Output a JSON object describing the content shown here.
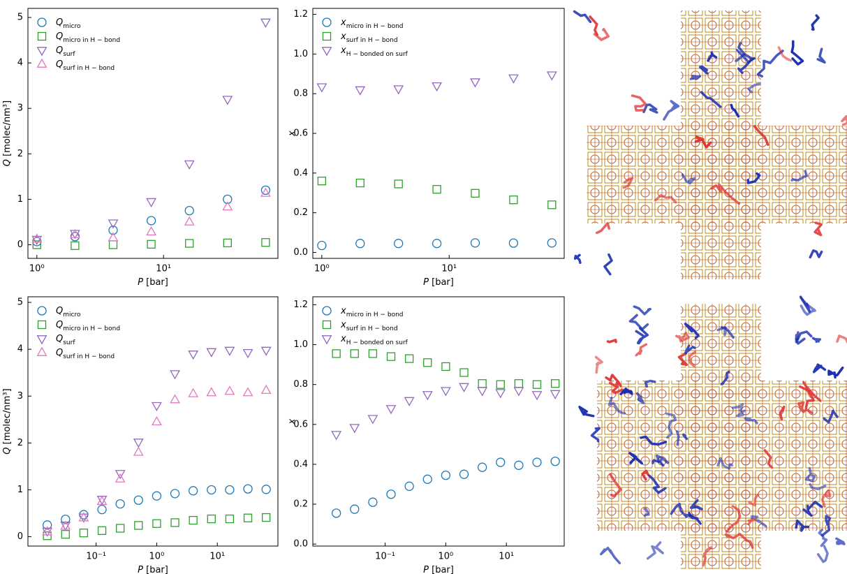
{
  "chart_data": [
    {
      "type": "scatter",
      "xscale": "log",
      "xlabel": "P [bar]",
      "ylabel": "Q [molec/nm³]",
      "xlim": [
        0.85,
        80
      ],
      "ylim": [
        -0.3,
        5.2
      ],
      "xticks": [
        {
          "value": 1,
          "label": "10⁰"
        },
        {
          "value": 10,
          "label": "10¹"
        }
      ],
      "yticks": [
        0,
        1,
        2,
        3,
        4,
        5
      ],
      "x": [
        1,
        2,
        4,
        8,
        16,
        32,
        64
      ],
      "series": [
        {
          "name": "Qmicro",
          "color": "#1f77b4",
          "marker": "circle",
          "values": [
            0.07,
            0.18,
            0.32,
            0.53,
            0.75,
            1.0,
            1.2
          ]
        },
        {
          "name": "Qmicro in H − bond",
          "color": "#2ca02c",
          "marker": "square",
          "values": [
            0.0,
            -0.02,
            0.0,
            0.01,
            0.03,
            0.04,
            0.05
          ]
        },
        {
          "name": "Qsurf",
          "color": "#9467bd",
          "marker": "triangle-down",
          "values": [
            0.12,
            0.25,
            0.48,
            0.95,
            1.78,
            3.2,
            4.9
          ]
        },
        {
          "name": "Qsurf in H − bond",
          "color": "#e377c2",
          "marker": "triangle-up",
          "values": [
            0.12,
            0.22,
            0.15,
            0.28,
            0.5,
            0.83,
            1.13
          ]
        }
      ]
    },
    {
      "type": "scatter",
      "xscale": "log",
      "xlabel": "P [bar]",
      "ylabel": "x",
      "xlim": [
        0.85,
        80
      ],
      "ylim": [
        -0.03,
        1.23
      ],
      "xticks": [
        {
          "value": 1,
          "label": "10⁰"
        },
        {
          "value": 10,
          "label": "10¹"
        }
      ],
      "yticks": [
        {
          "value": 0,
          "label": "0.0"
        },
        0.2,
        0.4,
        0.6,
        0.8,
        {
          "value": 1,
          "label": "1.0"
        },
        1.2
      ],
      "x": [
        1,
        2,
        4,
        8,
        16,
        32,
        64
      ],
      "series": [
        {
          "name": "xmicro in H − bond",
          "color": "#1f77b4",
          "marker": "circle",
          "values": [
            0.035,
            0.045,
            0.045,
            0.045,
            0.048,
            0.047,
            0.048
          ]
        },
        {
          "name": "xsurf in H − bond",
          "color": "#2ca02c",
          "marker": "square",
          "values": [
            0.36,
            0.35,
            0.345,
            0.318,
            0.298,
            0.265,
            0.24
          ]
        },
        {
          "name": "xH − bonded on surf",
          "color": "#9467bd",
          "marker": "triangle-down",
          "values": [
            0.835,
            0.82,
            0.825,
            0.84,
            0.86,
            0.88,
            0.895
          ]
        }
      ]
    },
    {
      "type": "scatter",
      "xscale": "log",
      "xlabel": "P [bar]",
      "ylabel": "Q [molec/nm³]",
      "xlim": [
        0.0075,
        100
      ],
      "ylim": [
        -0.2,
        5.12
      ],
      "xticks": [
        {
          "value": 0.1,
          "label": "10⁻¹"
        },
        {
          "value": 1,
          "label": "10⁰"
        },
        {
          "value": 10,
          "label": "10¹"
        }
      ],
      "yticks": [
        0,
        1,
        2,
        3,
        4,
        5
      ],
      "x": [
        0.015625,
        0.03125,
        0.0625,
        0.125,
        0.25,
        0.5,
        1,
        2,
        4,
        8,
        16,
        32,
        64
      ],
      "series": [
        {
          "name": "Qmicro",
          "color": "#1f77b4",
          "marker": "circle",
          "values": [
            0.25,
            0.37,
            0.47,
            0.58,
            0.7,
            0.78,
            0.87,
            0.92,
            0.98,
            1.0,
            1.0,
            1.02,
            1.01
          ]
        },
        {
          "name": "Qmicro in H − bond",
          "color": "#2ca02c",
          "marker": "square",
          "values": [
            0.02,
            0.05,
            0.08,
            0.13,
            0.18,
            0.24,
            0.28,
            0.3,
            0.35,
            0.38,
            0.38,
            0.4,
            0.41
          ]
        },
        {
          "name": "Qsurf",
          "color": "#9467bd",
          "marker": "triangle-down",
          "values": [
            0.12,
            0.25,
            0.42,
            0.8,
            1.35,
            2.02,
            2.8,
            3.48,
            3.9,
            3.95,
            3.98,
            3.93,
            3.98
          ]
        },
        {
          "name": "Qsurf in H − bond",
          "color": "#e377c2",
          "marker": "triangle-up",
          "values": [
            0.1,
            0.22,
            0.4,
            0.75,
            1.23,
            1.8,
            2.45,
            2.92,
            3.05,
            3.07,
            3.1,
            3.07,
            3.12
          ]
        }
      ]
    },
    {
      "type": "scatter",
      "xscale": "log",
      "xlabel": "P [bar]",
      "ylabel": "x",
      "xlim": [
        0.0064,
        90
      ],
      "ylim": [
        -0.01,
        1.24
      ],
      "xticks": [
        {
          "value": 0.1,
          "label": "10⁻¹"
        },
        {
          "value": 1,
          "label": "10⁰"
        },
        {
          "value": 10,
          "label": "10¹"
        }
      ],
      "yticks": [
        {
          "value": 0,
          "label": "0.0"
        },
        0.2,
        0.4,
        0.6,
        0.8,
        {
          "value": 1,
          "label": "1.0"
        },
        1.2
      ],
      "x": [
        0.015625,
        0.03125,
        0.0625,
        0.125,
        0.25,
        0.5,
        1,
        2,
        4,
        8,
        16,
        32,
        64
      ],
      "series": [
        {
          "name": "xmicro in H − bond",
          "color": "#1f77b4",
          "marker": "circle",
          "values": [
            0.155,
            0.175,
            0.21,
            0.25,
            0.29,
            0.325,
            0.345,
            0.35,
            0.385,
            0.41,
            0.395,
            0.41,
            0.415
          ]
        },
        {
          "name": "xsurf in H − bond",
          "color": "#2ca02c",
          "marker": "square",
          "values": [
            0.955,
            0.955,
            0.955,
            0.94,
            0.93,
            0.91,
            0.89,
            0.86,
            0.805,
            0.8,
            0.805,
            0.8,
            0.805
          ]
        },
        {
          "name": "xH − bonded on surf",
          "color": "#9467bd",
          "marker": "triangle-down",
          "values": [
            0.55,
            0.585,
            0.63,
            0.68,
            0.72,
            0.75,
            0.77,
            0.79,
            0.77,
            0.76,
            0.77,
            0.75,
            0.755
          ]
        }
      ]
    }
  ]
}
